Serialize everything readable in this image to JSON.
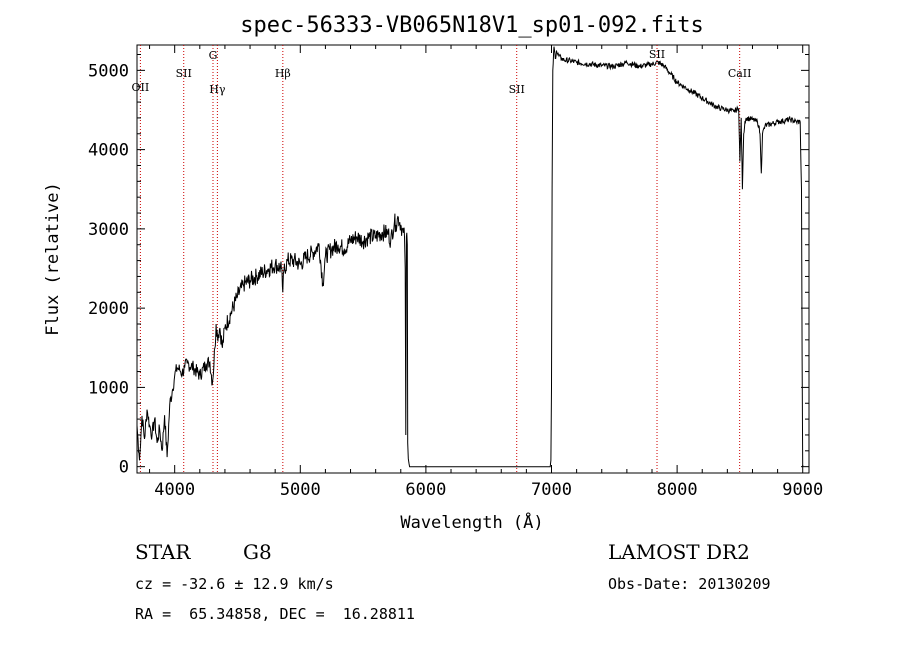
{
  "chart_data": {
    "type": "line",
    "title": "spec-56333-VB065N18V1_sp01-092.fits",
    "xlabel": "Wavelength (Å)",
    "ylabel": "Flux (relative)",
    "xlim": [
      3700,
      9050
    ],
    "ylim": [
      -80,
      5320
    ],
    "x_ticks": [
      4000,
      5000,
      6000,
      7000,
      8000,
      9000
    ],
    "x_tick_labels": [
      "4000",
      "5000",
      "6000",
      "7000",
      "8000",
      "9000"
    ],
    "y_ticks": [
      0,
      1000,
      2000,
      3000,
      4000,
      5000
    ],
    "y_tick_labels": [
      "0",
      "1000",
      "2000",
      "3000",
      "4000",
      "5000"
    ],
    "grid": false,
    "series": [
      {
        "color": "#000000",
        "x": [
          3700,
          3720,
          3740,
          3760,
          3780,
          3800,
          3820,
          3840,
          3860,
          3880,
          3900,
          3920,
          3940,
          3960,
          3980,
          4000,
          4020,
          4040,
          4060,
          4080,
          4100,
          4150,
          4200,
          4250,
          4280,
          4300,
          4320,
          4330,
          4340,
          4360,
          4380,
          4400,
          4450,
          4500,
          4550,
          4600,
          4650,
          4700,
          4750,
          4800,
          4850,
          4861,
          4870,
          4900,
          4950,
          5000,
          5050,
          5100,
          5150,
          5180,
          5200,
          5250,
          5300,
          5350,
          5400,
          5450,
          5500,
          5550,
          5600,
          5650,
          5700,
          5720,
          5750,
          5760,
          5780,
          5800,
          5810,
          5820,
          5830,
          5835,
          5840,
          5845,
          5848,
          5852,
          5855,
          5860,
          5870,
          5900,
          6000,
          6200,
          6400,
          6600,
          6800,
          6990,
          6995,
          7000,
          7005,
          7010,
          7020,
          7030,
          7040,
          7050,
          7060,
          7080,
          7100,
          7150,
          7200,
          7300,
          7400,
          7500,
          7600,
          7700,
          7800,
          7850,
          7900,
          7950,
          8000,
          8100,
          8200,
          8300,
          8350,
          8400,
          8450,
          8490,
          8500,
          8510,
          8520,
          8530,
          8540,
          8550,
          8600,
          8640,
          8650,
          8660,
          8670,
          8680,
          8700,
          8800,
          8900,
          8950,
          8980,
          8990,
          8995,
          9000
        ],
        "y": [
          520,
          80,
          640,
          350,
          720,
          520,
          400,
          600,
          300,
          480,
          200,
          650,
          120,
          780,
          950,
          1150,
          1250,
          1220,
          1180,
          1250,
          1300,
          1250,
          1150,
          1300,
          1320,
          1050,
          1500,
          1800,
          1650,
          1750,
          1500,
          1750,
          1950,
          2150,
          2300,
          2350,
          2400,
          2450,
          2500,
          2550,
          2500,
          2200,
          2480,
          2600,
          2600,
          2550,
          2650,
          2700,
          2800,
          2300,
          2650,
          2750,
          2800,
          2750,
          2850,
          2900,
          2850,
          2900,
          2900,
          2950,
          2950,
          2850,
          3100,
          3050,
          3150,
          3050,
          3000,
          2950,
          2900,
          2500,
          400,
          2900,
          2950,
          2800,
          300,
          100,
          0,
          0,
          0,
          0,
          0,
          0,
          0,
          0,
          80,
          1000,
          3500,
          5000,
          5300,
          5150,
          5250,
          5200,
          5180,
          5150,
          5130,
          5120,
          5100,
          5080,
          5060,
          5050,
          5100,
          5050,
          5080,
          5100,
          5050,
          4950,
          4850,
          4750,
          4650,
          4550,
          4520,
          4500,
          4480,
          4520,
          3850,
          4400,
          3500,
          4200,
          4350,
          4400,
          4380,
          4350,
          4300,
          4200,
          3700,
          4200,
          4300,
          4350,
          4380,
          4350,
          4350,
          3500,
          1400,
          0
        ]
      }
    ],
    "line_markers": [
      {
        "label": "OII",
        "wavelength": 3727,
        "color": "#cc0000"
      },
      {
        "label": "SII",
        "wavelength": 4072,
        "color": "#cc0000"
      },
      {
        "label": "G",
        "wavelength": 4305,
        "color": "#cc0000"
      },
      {
        "label": "Hγ",
        "wavelength": 4340,
        "color": "#cc0000"
      },
      {
        "label": "Hβ",
        "wavelength": 4861,
        "color": "#cc0000"
      },
      {
        "label": "SII",
        "wavelength": 6723,
        "color": "#cc0000"
      },
      {
        "label": "SII",
        "wavelength": 7840,
        "color": "#cc0000"
      },
      {
        "label": "CaII",
        "wavelength": 8498,
        "color": "#cc0000"
      }
    ]
  },
  "info": {
    "class_label": "STAR",
    "subclass_label": "G8",
    "survey_label": "LAMOST DR2",
    "redshift_text": "cz = -32.6 ± 12.9 km/s",
    "obs_date_text": "Obs-Date: 20130209",
    "coords_text": "RA =  65.34858, DEC =  16.28811"
  }
}
